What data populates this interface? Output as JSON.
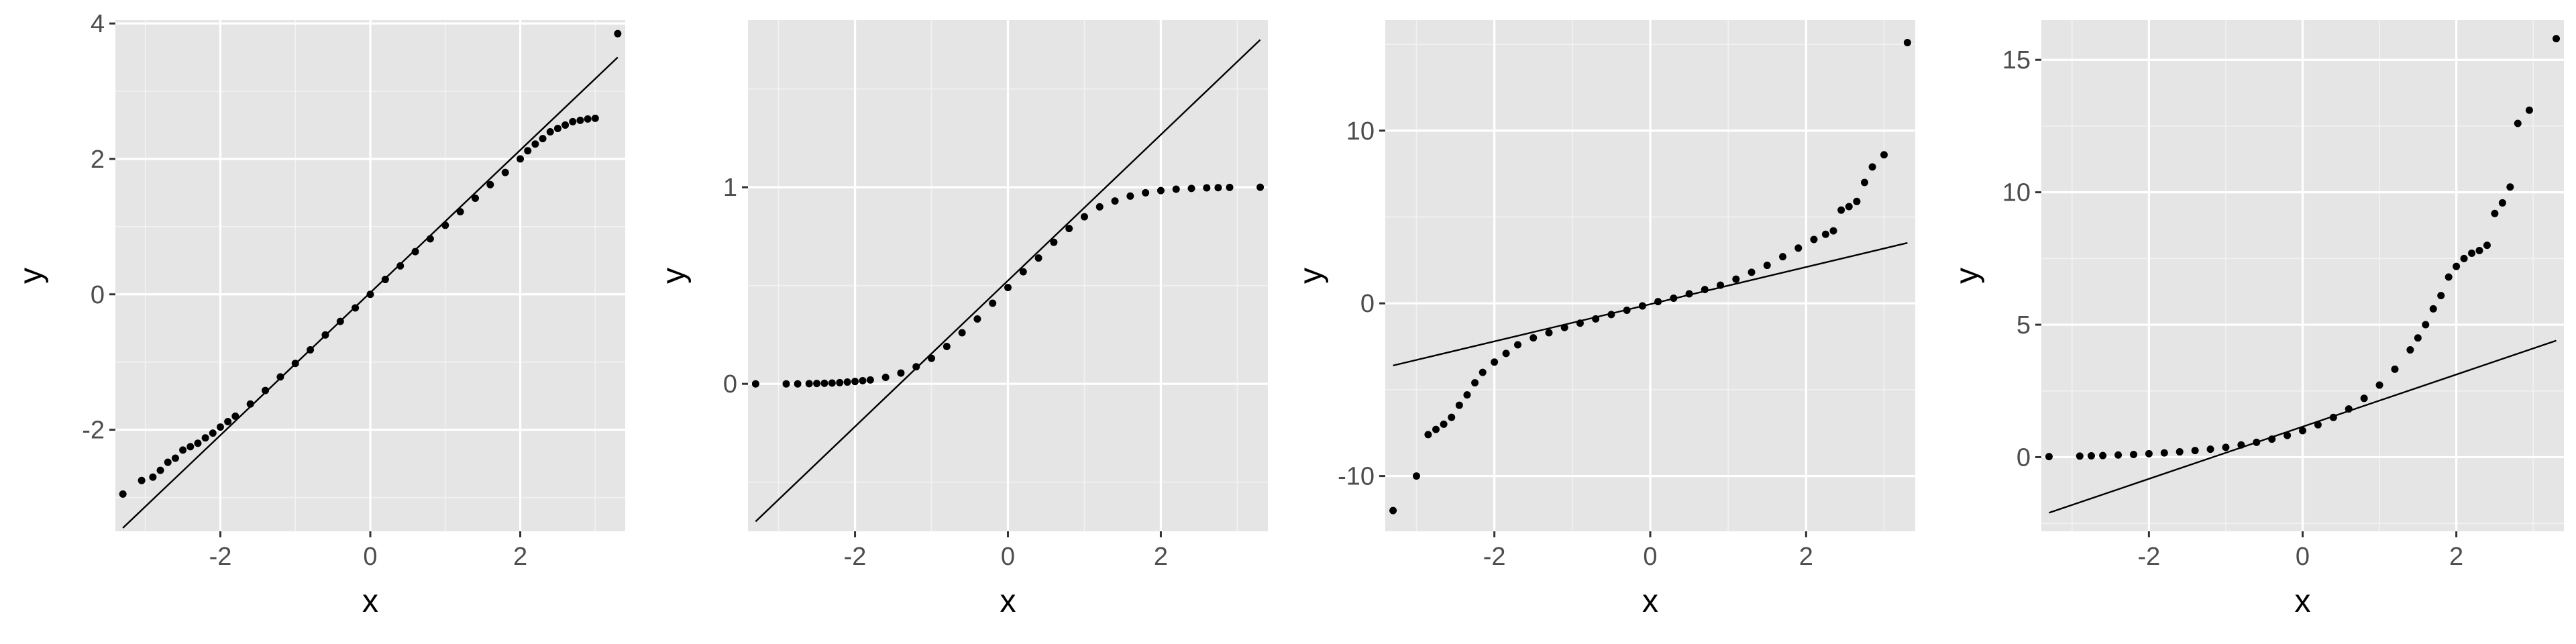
{
  "chart_data": [
    {
      "type": "scatter",
      "subtype": "qq-plot",
      "xlabel": "x",
      "ylabel": "y",
      "xlim": [
        -3.4,
        3.4
      ],
      "ylim": [
        -3.5,
        4.05
      ],
      "x_ticks": [
        -2,
        0,
        2
      ],
      "x_tick_labels": [
        "-2",
        "0",
        "2"
      ],
      "y_ticks": [
        -2,
        0,
        2,
        4
      ],
      "y_tick_labels": [
        "-2",
        "0",
        "2",
        "4"
      ],
      "grid": true,
      "reference_line": {
        "x": [
          -3.3,
          3.3
        ],
        "y": [
          -3.45,
          3.5
        ]
      },
      "points": [
        {
          "x": -3.3,
          "y": -2.95
        },
        {
          "x": -3.05,
          "y": -2.75
        },
        {
          "x": -2.9,
          "y": -2.7
        },
        {
          "x": -2.8,
          "y": -2.6
        },
        {
          "x": -2.7,
          "y": -2.48
        },
        {
          "x": -2.6,
          "y": -2.42
        },
        {
          "x": -2.5,
          "y": -2.3
        },
        {
          "x": -2.4,
          "y": -2.25
        },
        {
          "x": -2.3,
          "y": -2.2
        },
        {
          "x": -2.2,
          "y": -2.12
        },
        {
          "x": -2.1,
          "y": -2.05
        },
        {
          "x": -2.0,
          "y": -1.96
        },
        {
          "x": -1.9,
          "y": -1.88
        },
        {
          "x": -1.8,
          "y": -1.8
        },
        {
          "x": -1.6,
          "y": -1.62
        },
        {
          "x": -1.4,
          "y": -1.42
        },
        {
          "x": -1.2,
          "y": -1.22
        },
        {
          "x": -1.0,
          "y": -1.02
        },
        {
          "x": -0.8,
          "y": -0.82
        },
        {
          "x": -0.6,
          "y": -0.6
        },
        {
          "x": -0.4,
          "y": -0.4
        },
        {
          "x": -0.2,
          "y": -0.2
        },
        {
          "x": 0.0,
          "y": 0.0
        },
        {
          "x": 0.2,
          "y": 0.22
        },
        {
          "x": 0.4,
          "y": 0.42
        },
        {
          "x": 0.6,
          "y": 0.63
        },
        {
          "x": 0.8,
          "y": 0.82
        },
        {
          "x": 1.0,
          "y": 1.02
        },
        {
          "x": 1.2,
          "y": 1.22
        },
        {
          "x": 1.4,
          "y": 1.42
        },
        {
          "x": 1.6,
          "y": 1.62
        },
        {
          "x": 1.8,
          "y": 1.8
        },
        {
          "x": 2.0,
          "y": 2.0
        },
        {
          "x": 2.1,
          "y": 2.12
        },
        {
          "x": 2.2,
          "y": 2.22
        },
        {
          "x": 2.3,
          "y": 2.3
        },
        {
          "x": 2.4,
          "y": 2.4
        },
        {
          "x": 2.5,
          "y": 2.45
        },
        {
          "x": 2.6,
          "y": 2.5
        },
        {
          "x": 2.7,
          "y": 2.55
        },
        {
          "x": 2.8,
          "y": 2.57
        },
        {
          "x": 2.9,
          "y": 2.59
        },
        {
          "x": 3.0,
          "y": 2.6
        },
        {
          "x": 3.3,
          "y": 3.85
        }
      ]
    },
    {
      "type": "scatter",
      "subtype": "qq-plot",
      "xlabel": "x",
      "ylabel": "y",
      "xlim": [
        -3.4,
        3.4
      ],
      "ylim": [
        -0.75,
        1.85
      ],
      "x_ticks": [
        -2,
        0,
        2
      ],
      "x_tick_labels": [
        "-2",
        "0",
        "2"
      ],
      "y_ticks": [
        0,
        1
      ],
      "y_tick_labels": [
        "0",
        "1"
      ],
      "grid": true,
      "reference_line": {
        "x": [
          -3.3,
          3.3
        ],
        "y": [
          -0.7,
          1.75
        ]
      },
      "points": [
        {
          "x": -3.3,
          "y": 0.0
        },
        {
          "x": -2.9,
          "y": 0.0
        },
        {
          "x": -2.75,
          "y": 0.0
        },
        {
          "x": -2.6,
          "y": 0.001
        },
        {
          "x": -2.5,
          "y": 0.002
        },
        {
          "x": -2.4,
          "y": 0.003
        },
        {
          "x": -2.3,
          "y": 0.004
        },
        {
          "x": -2.2,
          "y": 0.006
        },
        {
          "x": -2.1,
          "y": 0.009
        },
        {
          "x": -2.0,
          "y": 0.012
        },
        {
          "x": -1.9,
          "y": 0.016
        },
        {
          "x": -1.8,
          "y": 0.02
        },
        {
          "x": -1.6,
          "y": 0.033
        },
        {
          "x": -1.4,
          "y": 0.055
        },
        {
          "x": -1.2,
          "y": 0.087
        },
        {
          "x": -1.0,
          "y": 0.13
        },
        {
          "x": -0.8,
          "y": 0.19
        },
        {
          "x": -0.6,
          "y": 0.26
        },
        {
          "x": -0.4,
          "y": 0.33
        },
        {
          "x": -0.2,
          "y": 0.41
        },
        {
          "x": 0.0,
          "y": 0.49
        },
        {
          "x": 0.2,
          "y": 0.57
        },
        {
          "x": 0.4,
          "y": 0.64
        },
        {
          "x": 0.6,
          "y": 0.72
        },
        {
          "x": 0.8,
          "y": 0.79
        },
        {
          "x": 1.0,
          "y": 0.85
        },
        {
          "x": 1.2,
          "y": 0.9
        },
        {
          "x": 1.4,
          "y": 0.93
        },
        {
          "x": 1.6,
          "y": 0.955
        },
        {
          "x": 1.8,
          "y": 0.972
        },
        {
          "x": 2.0,
          "y": 0.983
        },
        {
          "x": 2.2,
          "y": 0.99
        },
        {
          "x": 2.4,
          "y": 0.994
        },
        {
          "x": 2.6,
          "y": 0.997
        },
        {
          "x": 2.75,
          "y": 0.998
        },
        {
          "x": 2.9,
          "y": 0.999
        },
        {
          "x": 3.3,
          "y": 1.0
        }
      ]
    },
    {
      "type": "scatter",
      "subtype": "qq-plot",
      "xlabel": "x",
      "ylabel": "y",
      "xlim": [
        -3.4,
        3.4
      ],
      "ylim": [
        -13.2,
        16.4
      ],
      "x_ticks": [
        -2,
        0,
        2
      ],
      "x_tick_labels": [
        "-2",
        "0",
        "2"
      ],
      "y_ticks": [
        -10,
        0,
        10
      ],
      "y_tick_labels": [
        "-10",
        "0",
        "10"
      ],
      "grid": true,
      "reference_line": {
        "x": [
          -3.3,
          3.3
        ],
        "y": [
          -3.6,
          3.5
        ]
      },
      "points": [
        {
          "x": -3.3,
          "y": -12.0
        },
        {
          "x": -3.0,
          "y": -10.0
        },
        {
          "x": -2.85,
          "y": -7.6
        },
        {
          "x": -2.75,
          "y": -7.3
        },
        {
          "x": -2.65,
          "y": -7.0
        },
        {
          "x": -2.55,
          "y": -6.6
        },
        {
          "x": -2.45,
          "y": -5.9
        },
        {
          "x": -2.35,
          "y": -5.3
        },
        {
          "x": -2.25,
          "y": -4.6
        },
        {
          "x": -2.15,
          "y": -4.0
        },
        {
          "x": -2.0,
          "y": -3.4
        },
        {
          "x": -1.85,
          "y": -2.9
        },
        {
          "x": -1.7,
          "y": -2.4
        },
        {
          "x": -1.5,
          "y": -2.0
        },
        {
          "x": -1.3,
          "y": -1.7
        },
        {
          "x": -1.1,
          "y": -1.4
        },
        {
          "x": -0.9,
          "y": -1.15
        },
        {
          "x": -0.7,
          "y": -0.9
        },
        {
          "x": -0.5,
          "y": -0.65
        },
        {
          "x": -0.3,
          "y": -0.4
        },
        {
          "x": -0.1,
          "y": -0.15
        },
        {
          "x": 0.1,
          "y": 0.1
        },
        {
          "x": 0.3,
          "y": 0.3
        },
        {
          "x": 0.5,
          "y": 0.55
        },
        {
          "x": 0.7,
          "y": 0.8
        },
        {
          "x": 0.9,
          "y": 1.05
        },
        {
          "x": 1.1,
          "y": 1.4
        },
        {
          "x": 1.3,
          "y": 1.8
        },
        {
          "x": 1.5,
          "y": 2.2
        },
        {
          "x": 1.7,
          "y": 2.7
        },
        {
          "x": 1.9,
          "y": 3.2
        },
        {
          "x": 2.1,
          "y": 3.7
        },
        {
          "x": 2.25,
          "y": 4.0
        },
        {
          "x": 2.35,
          "y": 4.2
        },
        {
          "x": 2.45,
          "y": 5.4
        },
        {
          "x": 2.55,
          "y": 5.6
        },
        {
          "x": 2.65,
          "y": 5.9
        },
        {
          "x": 2.75,
          "y": 7.0
        },
        {
          "x": 2.85,
          "y": 7.9
        },
        {
          "x": 3.0,
          "y": 8.6
        },
        {
          "x": 3.3,
          "y": 15.1
        }
      ]
    },
    {
      "type": "scatter",
      "subtype": "qq-plot",
      "xlabel": "x",
      "ylabel": "y",
      "xlim": [
        -3.4,
        3.4
      ],
      "ylim": [
        -2.8,
        16.5
      ],
      "x_ticks": [
        -2,
        0,
        2
      ],
      "x_tick_labels": [
        "-2",
        "0",
        "2"
      ],
      "y_ticks": [
        0,
        5,
        10,
        15
      ],
      "y_tick_labels": [
        "0",
        "5",
        "10",
        "15"
      ],
      "grid": true,
      "reference_line": {
        "x": [
          -3.3,
          3.3
        ],
        "y": [
          -2.1,
          4.4
        ]
      },
      "points": [
        {
          "x": -3.3,
          "y": 0.02
        },
        {
          "x": -2.9,
          "y": 0.04
        },
        {
          "x": -2.75,
          "y": 0.05
        },
        {
          "x": -2.6,
          "y": 0.06
        },
        {
          "x": -2.4,
          "y": 0.08
        },
        {
          "x": -2.2,
          "y": 0.1
        },
        {
          "x": -2.0,
          "y": 0.13
        },
        {
          "x": -1.8,
          "y": 0.16
        },
        {
          "x": -1.6,
          "y": 0.2
        },
        {
          "x": -1.4,
          "y": 0.25
        },
        {
          "x": -1.2,
          "y": 0.3
        },
        {
          "x": -1.0,
          "y": 0.37
        },
        {
          "x": -0.8,
          "y": 0.46
        },
        {
          "x": -0.6,
          "y": 0.56
        },
        {
          "x": -0.4,
          "y": 0.68
        },
        {
          "x": -0.2,
          "y": 0.82
        },
        {
          "x": 0.0,
          "y": 1.0
        },
        {
          "x": 0.2,
          "y": 1.22
        },
        {
          "x": 0.4,
          "y": 1.5
        },
        {
          "x": 0.6,
          "y": 1.82
        },
        {
          "x": 0.8,
          "y": 2.22
        },
        {
          "x": 1.0,
          "y": 2.72
        },
        {
          "x": 1.2,
          "y": 3.32
        },
        {
          "x": 1.4,
          "y": 4.05
        },
        {
          "x": 1.5,
          "y": 4.5
        },
        {
          "x": 1.6,
          "y": 5.0
        },
        {
          "x": 1.7,
          "y": 5.6
        },
        {
          "x": 1.8,
          "y": 6.1
        },
        {
          "x": 1.9,
          "y": 6.8
        },
        {
          "x": 2.0,
          "y": 7.2
        },
        {
          "x": 2.1,
          "y": 7.5
        },
        {
          "x": 2.2,
          "y": 7.7
        },
        {
          "x": 2.3,
          "y": 7.8
        },
        {
          "x": 2.4,
          "y": 8.0
        },
        {
          "x": 2.5,
          "y": 9.2
        },
        {
          "x": 2.6,
          "y": 9.6
        },
        {
          "x": 2.7,
          "y": 10.2
        },
        {
          "x": 2.8,
          "y": 12.6
        },
        {
          "x": 2.95,
          "y": 13.1
        },
        {
          "x": 3.3,
          "y": 15.8
        }
      ]
    }
  ]
}
